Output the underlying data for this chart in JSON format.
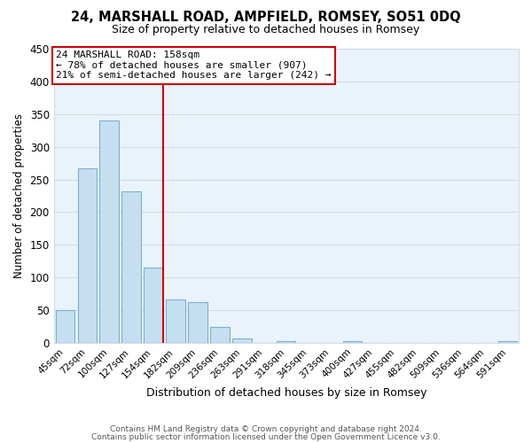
{
  "title": "24, MARSHALL ROAD, AMPFIELD, ROMSEY, SO51 0DQ",
  "subtitle": "Size of property relative to detached houses in Romsey",
  "xlabel": "Distribution of detached houses by size in Romsey",
  "ylabel": "Number of detached properties",
  "bar_labels": [
    "45sqm",
    "72sqm",
    "100sqm",
    "127sqm",
    "154sqm",
    "182sqm",
    "209sqm",
    "236sqm",
    "263sqm",
    "291sqm",
    "318sqm",
    "345sqm",
    "373sqm",
    "400sqm",
    "427sqm",
    "455sqm",
    "482sqm",
    "509sqm",
    "536sqm",
    "564sqm",
    "591sqm"
  ],
  "bar_values": [
    50,
    267,
    340,
    232,
    115,
    66,
    62,
    25,
    7,
    0,
    2,
    0,
    0,
    2,
    0,
    0,
    0,
    0,
    0,
    0,
    3
  ],
  "bar_color": "#c6dff0",
  "bar_edge_color": "#7ab0d4",
  "marker_bar_index": 4,
  "marker_color": "#cc0000",
  "ylim": [
    0,
    450
  ],
  "yticks": [
    0,
    50,
    100,
    150,
    200,
    250,
    300,
    350,
    400,
    450
  ],
  "annotation_title": "24 MARSHALL ROAD: 158sqm",
  "annotation_line1": "← 78% of detached houses are smaller (907)",
  "annotation_line2": "21% of semi-detached houses are larger (242) →",
  "footnote1": "Contains HM Land Registry data © Crown copyright and database right 2024.",
  "footnote2": "Contains public sector information licensed under the Open Government Licence v3.0.",
  "background_color": "#ffffff",
  "grid_color": "#d0dce8",
  "plot_bg_color": "#eaf3fb"
}
